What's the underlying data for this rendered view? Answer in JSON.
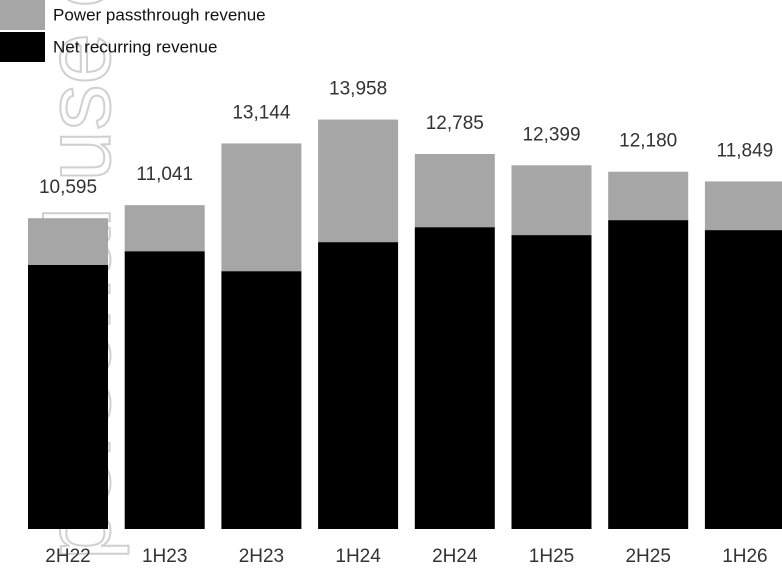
{
  "chart_data": {
    "type": "stacked_bar",
    "watermark": "personal use only",
    "categories": [
      "2H22",
      "1H23",
      "2H23",
      "1H24",
      "2H24",
      "1H25",
      "2H25",
      "1H26"
    ],
    "series": [
      {
        "name": "Net recurring revenue",
        "color": "#000000",
        "values": [
          9000,
          9470,
          8790,
          9780,
          10290,
          10020,
          10530,
          10190
        ]
      },
      {
        "name": "Power passthrough revenue",
        "color": "#a6a6a6",
        "values": [
          1595,
          1571,
          4354,
          4178,
          2495,
          2379,
          1650,
          1659
        ]
      }
    ],
    "totals": [
      10595,
      11041,
      13144,
      13958,
      12785,
      12399,
      12180,
      11849
    ],
    "total_labels": [
      "10,595",
      "11,041",
      "13,144",
      "13,958",
      "12,785",
      "12,399",
      "12,180",
      "11,849"
    ],
    "ylim": [
      0,
      18000
    ]
  }
}
